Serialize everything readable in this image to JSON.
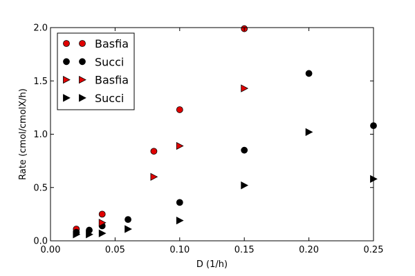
{
  "chart_data": {
    "type": "scatter",
    "xlabel": "D (1/h)",
    "ylabel": "Rate (cmol/cmolX/h)",
    "xlim": [
      0.0,
      0.25
    ],
    "ylim": [
      0.0,
      2.0
    ],
    "x_ticks": [
      "0.00",
      "0.05",
      "0.10",
      "0.15",
      "0.20",
      "0.25"
    ],
    "y_ticks": [
      "0.0",
      "0.5",
      "1.0",
      "1.5",
      "2.0"
    ],
    "grid": false,
    "legend_position": "upper-left",
    "series": [
      {
        "name": "Basfia",
        "marker": "circle",
        "color": "#e00000",
        "points": [
          [
            0.02,
            0.11
          ],
          [
            0.04,
            0.25
          ],
          [
            0.08,
            0.84
          ],
          [
            0.1,
            1.23
          ],
          [
            0.15,
            1.99
          ]
        ]
      },
      {
        "name": "Succi",
        "marker": "circle",
        "color": "#000000",
        "points": [
          [
            0.02,
            0.08
          ],
          [
            0.03,
            0.1
          ],
          [
            0.04,
            0.14
          ],
          [
            0.06,
            0.2
          ],
          [
            0.1,
            0.36
          ],
          [
            0.15,
            0.85
          ],
          [
            0.2,
            1.57
          ],
          [
            0.25,
            1.08
          ]
        ]
      },
      {
        "name": "Basfia",
        "marker": "triangle-right",
        "color": "#e00000",
        "points": [
          [
            0.04,
            0.17
          ],
          [
            0.08,
            0.6
          ],
          [
            0.1,
            0.89
          ],
          [
            0.15,
            1.43
          ]
        ]
      },
      {
        "name": "Succi",
        "marker": "triangle-right",
        "color": "#000000",
        "points": [
          [
            0.02,
            0.06
          ],
          [
            0.03,
            0.06
          ],
          [
            0.04,
            0.07
          ],
          [
            0.06,
            0.11
          ],
          [
            0.1,
            0.19
          ],
          [
            0.15,
            0.52
          ],
          [
            0.2,
            1.02
          ],
          [
            0.25,
            0.58
          ]
        ]
      }
    ]
  }
}
